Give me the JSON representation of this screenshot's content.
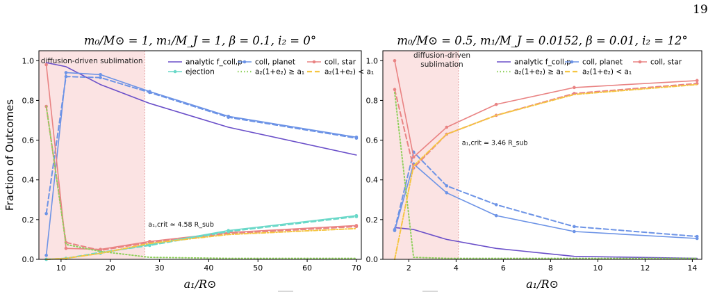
{
  "page": {
    "number": "19"
  },
  "chart_data": [
    {
      "type": "line",
      "title": "m₀/M⊙ = 1,  m₁/M_J = 1,  β = 0.1,  i₂ = 0°",
      "xlabel": "a₁/R⊙",
      "ylabel": "Fraction of Outcomes",
      "xlim": [
        5.5,
        71
      ],
      "ylim": [
        0,
        1.05
      ],
      "xticks": [
        10,
        20,
        30,
        40,
        50,
        60,
        70
      ],
      "yticks": [
        0.0,
        0.2,
        0.4,
        0.6,
        0.8,
        1.0
      ],
      "shaded_region": {
        "x0": 5.5,
        "x1": 27,
        "label": "diffusion-driven sublimation"
      },
      "critical_line": {
        "x": 27,
        "label": "a₁,crit ≃ 4.58 R_sub",
        "label_y": 0.165
      },
      "legend_placement": "top-right",
      "legend": [
        {
          "label": "analytic f_coll,p",
          "color": "#6a4fc9",
          "style": "solid",
          "marker": false
        },
        {
          "label": "coll, planet",
          "color": "#6c93e6",
          "style": "solid",
          "marker": true
        },
        {
          "label": "coll, star",
          "color": "#e98383",
          "style": "solid",
          "marker": true
        },
        {
          "label": "ejection",
          "color": "#69d8c8",
          "style": "solid",
          "marker": true
        },
        {
          "label": "a₂(1+e₂) ≥ a₁",
          "color": "#8fd05c",
          "style": "dotted",
          "marker": false
        },
        {
          "label": "a₂(1+e₂) < a₁",
          "color": "#f5c542",
          "style": "dashed",
          "marker": false
        }
      ],
      "series": [
        {
          "key": "analytic",
          "color": "#6a4fc9",
          "style": "solid",
          "marker": false,
          "x": [
            7,
            11,
            18,
            28,
            44,
            70
          ],
          "y": [
            0.99,
            0.97,
            0.88,
            0.785,
            0.665,
            0.525
          ]
        },
        {
          "key": "planet_solid",
          "color": "#6c93e6",
          "style": "solid",
          "marker": true,
          "x": [
            7,
            11,
            18,
            28,
            44,
            70
          ],
          "y": [
            0.02,
            0.94,
            0.93,
            0.845,
            0.72,
            0.615
          ]
        },
        {
          "key": "planet_dashed",
          "color": "#6c93e6",
          "style": "dashed",
          "marker": true,
          "x": [
            7,
            11,
            18,
            28,
            44,
            70
          ],
          "y": [
            0.23,
            0.92,
            0.915,
            0.84,
            0.715,
            0.61
          ]
        },
        {
          "key": "star_solid",
          "color": "#e98383",
          "style": "solid",
          "marker": true,
          "x": [
            7,
            11,
            18,
            28,
            44,
            70
          ],
          "y": [
            0.98,
            0.055,
            0.05,
            0.09,
            0.135,
            0.17
          ]
        },
        {
          "key": "star_dashed",
          "color": "#e98383",
          "style": "dashed",
          "marker": true,
          "x": [
            7,
            11,
            18,
            28,
            44,
            70
          ],
          "y": [
            0.77,
            0.085,
            0.045,
            0.085,
            0.13,
            0.165
          ]
        },
        {
          "key": "ejection_solid",
          "color": "#69d8c8",
          "style": "solid",
          "marker": true,
          "x": [
            7,
            11,
            18,
            28,
            44,
            70
          ],
          "y": [
            0.0,
            0.005,
            0.03,
            0.075,
            0.145,
            0.22
          ]
        },
        {
          "key": "ejection_dashed",
          "color": "#69d8c8",
          "style": "dashed",
          "marker": true,
          "x": [
            7,
            11,
            18,
            28,
            44,
            70
          ],
          "y": [
            0.0,
            0.005,
            0.035,
            0.07,
            0.14,
            0.215
          ]
        },
        {
          "key": "dotted_green",
          "color": "#8fd05c",
          "style": "dotted",
          "marker": false,
          "x": [
            7,
            11,
            18,
            28,
            44,
            70
          ],
          "y": [
            0.77,
            0.075,
            0.04,
            0.01,
            0.005,
            0.005
          ]
        },
        {
          "key": "dashed_yellow",
          "color": "#f5c542",
          "style": "dashdot",
          "marker": false,
          "x": [
            7,
            11,
            18,
            28,
            44,
            70
          ],
          "y": [
            0.0,
            0.005,
            0.03,
            0.08,
            0.125,
            0.155
          ]
        }
      ]
    },
    {
      "type": "line",
      "title": "m₀/M⊙ = 0.5,  m₁/M_J = 0.0152,  β = 0.01,  i₂ = 12°",
      "xlabel": "a₁/R⊙",
      "ylabel": "",
      "xlim": [
        0.9,
        14.4
      ],
      "ylim": [
        0,
        1.05
      ],
      "xticks": [
        2,
        4,
        6,
        8,
        10,
        12,
        14
      ],
      "yticks": [
        0.0,
        0.2,
        0.4,
        0.6,
        0.8,
        1.0
      ],
      "shaded_region": {
        "x0": 0.9,
        "x1": 4.1,
        "label": "diffusion-driven sublimation"
      },
      "critical_line": {
        "x": 4.1,
        "label": "a₁,crit ≃ 3.46 R_sub",
        "label_y": 0.575
      },
      "legend_placement": "top-right",
      "legend": [
        {
          "label": "analytic f_coll,p",
          "color": "#6a4fc9",
          "style": "solid",
          "marker": false
        },
        {
          "label": "coll, planet",
          "color": "#6c93e6",
          "style": "solid",
          "marker": true
        },
        {
          "label": "coll, star",
          "color": "#e98383",
          "style": "solid",
          "marker": true
        },
        {
          "label": "a₂(1+e₂) ≥ a₁",
          "color": "#8fd05c",
          "style": "dotted",
          "marker": false
        },
        {
          "label": "a₂(1+e₂) < a₁",
          "color": "#f5c542",
          "style": "dashed",
          "marker": false
        }
      ],
      "series": [
        {
          "key": "analytic",
          "color": "#6a4fc9",
          "style": "solid",
          "marker": false,
          "x": [
            1.4,
            2.2,
            3.6,
            5.7,
            9.0,
            14.2
          ],
          "y": [
            0.16,
            0.15,
            0.1,
            0.055,
            0.015,
            0.005
          ]
        },
        {
          "key": "planet_solid",
          "color": "#6c93e6",
          "style": "solid",
          "marker": true,
          "x": [
            1.4,
            2.2,
            3.6,
            5.7,
            9.0,
            14.2
          ],
          "y": [
            0.145,
            0.48,
            0.335,
            0.22,
            0.14,
            0.105
          ]
        },
        {
          "key": "planet_dashed",
          "color": "#6c93e6",
          "style": "dashed",
          "marker": true,
          "x": [
            1.4,
            2.2,
            3.6,
            5.7,
            9.0,
            14.2
          ],
          "y": [
            0.15,
            0.54,
            0.37,
            0.275,
            0.165,
            0.115
          ]
        },
        {
          "key": "star_solid",
          "color": "#e98383",
          "style": "solid",
          "marker": true,
          "x": [
            1.4,
            2.2,
            3.6,
            5.7,
            9.0,
            14.2
          ],
          "y": [
            1.0,
            0.515,
            0.665,
            0.78,
            0.865,
            0.9
          ]
        },
        {
          "key": "star_dashed",
          "color": "#e98383",
          "style": "dashed",
          "marker": true,
          "x": [
            1.4,
            2.2,
            3.6,
            5.7,
            9.0,
            14.2
          ],
          "y": [
            0.855,
            0.46,
            0.63,
            0.725,
            0.835,
            0.885
          ]
        },
        {
          "key": "dotted_green",
          "color": "#8fd05c",
          "style": "dotted",
          "marker": false,
          "x": [
            1.4,
            2.2,
            3.6,
            5.7,
            9.0,
            14.2
          ],
          "y": [
            0.84,
            0.01,
            0.005,
            0.005,
            0.005,
            0.005
          ]
        },
        {
          "key": "dashed_yellow",
          "color": "#f5c542",
          "style": "dashdot",
          "marker": false,
          "x": [
            1.4,
            2.2,
            3.6,
            5.7,
            9.0,
            14.2
          ],
          "y": [
            0.0,
            0.47,
            0.63,
            0.725,
            0.83,
            0.88
          ]
        }
      ]
    }
  ]
}
